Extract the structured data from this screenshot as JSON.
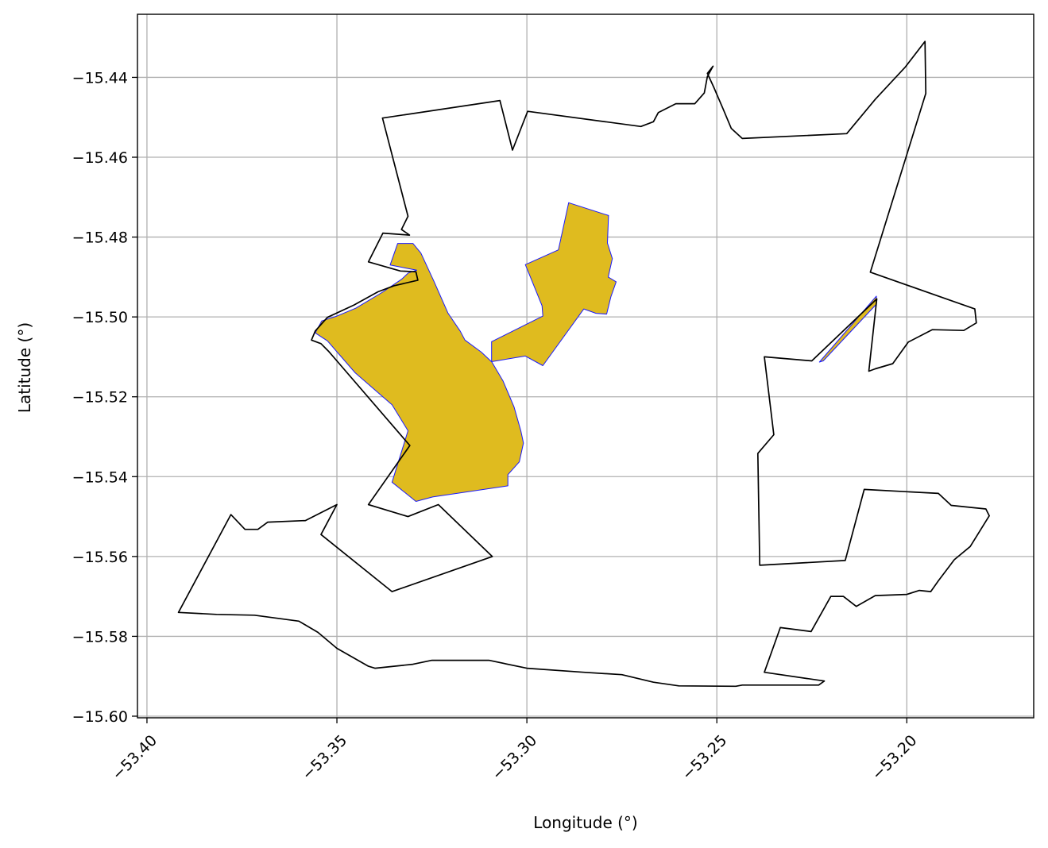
{
  "chart_data": {
    "type": "map",
    "xlabel": "Longitude (°)",
    "ylabel": "Latitude (°)",
    "xlim": [
      -53.4025,
      -53.1666
    ],
    "ylim": [
      -15.6004,
      -15.4242
    ],
    "x_ticks": [
      -53.4,
      -53.35,
      -53.3,
      -53.25,
      -53.2
    ],
    "x_tick_labels": [
      "−53.40",
      "−53.35",
      "−53.30",
      "−53.25",
      "−53.20"
    ],
    "y_ticks": [
      -15.44,
      -15.46,
      -15.48,
      -15.5,
      -15.52,
      -15.54,
      -15.56,
      -15.58,
      -15.6
    ],
    "y_tick_labels": [
      "−15.44",
      "−15.46",
      "−15.48",
      "−15.50",
      "−15.52",
      "−15.54",
      "−15.56",
      "−15.58",
      "−15.60"
    ],
    "grid": true,
    "colors": {
      "boundary": "#000000",
      "region_fill": "#dfbb1f",
      "region_edge": "#1a1aff",
      "grid": "#b0b0b0"
    },
    "boundary": [
      [
        -53.3071,
        -15.4458
      ],
      [
        -53.3038,
        -15.4582
      ],
      [
        -53.2998,
        -15.4485
      ],
      [
        -53.27,
        -15.4523
      ],
      [
        -53.2667,
        -15.4511
      ],
      [
        -53.2654,
        -15.4488
      ],
      [
        -53.2608,
        -15.4466
      ],
      [
        -53.2558,
        -15.4466
      ],
      [
        -53.2533,
        -15.4439
      ],
      [
        -53.2525,
        -15.4398
      ],
      [
        -53.251,
        -15.4372
      ],
      [
        -53.2525,
        -15.439
      ],
      [
        -53.2508,
        -15.4425
      ],
      [
        -53.2483,
        -15.448
      ],
      [
        -53.2462,
        -15.4528
      ],
      [
        -53.2433,
        -15.4553
      ],
      [
        -53.2158,
        -15.4541
      ],
      [
        -53.2083,
        -15.4455
      ],
      [
        -53.2004,
        -15.4374
      ],
      [
        -53.1952,
        -15.431
      ],
      [
        -53.195,
        -15.444
      ],
      [
        -53.2096,
        -15.4888
      ],
      [
        -53.1821,
        -15.498
      ],
      [
        -53.1817,
        -15.5015
      ],
      [
        -53.185,
        -15.5034
      ],
      [
        -53.1933,
        -15.5032
      ],
      [
        -53.1996,
        -15.5063
      ],
      [
        -53.2037,
        -15.5117
      ],
      [
        -53.2083,
        -15.513
      ],
      [
        -53.21,
        -15.5136
      ],
      [
        -53.2079,
        -15.4955
      ],
      [
        -53.225,
        -15.511
      ],
      [
        -53.2375,
        -15.51
      ],
      [
        -53.2367,
        -15.5162
      ],
      [
        -53.235,
        -15.5295
      ],
      [
        -53.2392,
        -15.5342
      ],
      [
        -53.2387,
        -15.5622
      ],
      [
        -53.2162,
        -15.561
      ],
      [
        -53.2112,
        -15.5432
      ],
      [
        -53.1917,
        -15.5442
      ],
      [
        -53.1883,
        -15.5472
      ],
      [
        -53.1792,
        -15.5481
      ],
      [
        -53.1783,
        -15.5498
      ],
      [
        -53.1833,
        -15.5575
      ],
      [
        -53.1875,
        -15.5608
      ],
      [
        -53.1917,
        -15.5661
      ],
      [
        -53.1937,
        -15.5688
      ],
      [
        -53.1967,
        -15.5685
      ],
      [
        -53.2,
        -15.5695
      ],
      [
        -53.2083,
        -15.5698
      ],
      [
        -53.2133,
        -15.5725
      ],
      [
        -53.2167,
        -15.57
      ],
      [
        -53.22,
        -15.57
      ],
      [
        -53.2252,
        -15.5788
      ],
      [
        -53.2333,
        -15.5778
      ],
      [
        -53.2375,
        -15.589
      ],
      [
        -53.2217,
        -15.5912
      ],
      [
        -53.2232,
        -15.5922
      ],
      [
        -53.2433,
        -15.5922
      ],
      [
        -53.245,
        -15.5925
      ],
      [
        -53.26,
        -15.5924
      ],
      [
        -53.2667,
        -15.5915
      ],
      [
        -53.275,
        -15.5896
      ],
      [
        -53.285,
        -15.589
      ],
      [
        -53.3,
        -15.588
      ],
      [
        -53.31,
        -15.586
      ],
      [
        -53.325,
        -15.586
      ],
      [
        -53.33,
        -15.587
      ],
      [
        -53.34,
        -15.588
      ],
      [
        -53.3417,
        -15.5875
      ],
      [
        -53.35,
        -15.583
      ],
      [
        -53.355,
        -15.579
      ],
      [
        -53.36,
        -15.5762
      ],
      [
        -53.3717,
        -15.5747
      ],
      [
        -53.3817,
        -15.5745
      ],
      [
        -53.3917,
        -15.574
      ],
      [
        -53.3779,
        -15.5495
      ],
      [
        -53.3742,
        -15.5532
      ],
      [
        -53.3708,
        -15.5532
      ],
      [
        -53.3682,
        -15.5514
      ],
      [
        -53.3583,
        -15.551
      ],
      [
        -53.35,
        -15.547
      ],
      [
        -53.3542,
        -15.5545
      ],
      [
        -53.3355,
        -15.5688
      ],
      [
        -53.3091,
        -15.56
      ],
      [
        -53.3233,
        -15.547
      ],
      [
        -53.3313,
        -15.55
      ],
      [
        -53.3417,
        -15.547
      ],
      [
        -53.3308,
        -15.5322
      ],
      [
        -53.35,
        -15.511
      ],
      [
        -53.3521,
        -15.5087
      ],
      [
        -53.3542,
        -15.5067
      ],
      [
        -53.3567,
        -15.5058
      ],
      [
        -53.3557,
        -15.5035
      ],
      [
        -53.3525,
        -15.5001
      ],
      [
        -53.3455,
        -15.497
      ],
      [
        -53.3392,
        -15.4937
      ],
      [
        -53.335,
        -15.4922
      ],
      [
        -53.3287,
        -15.4908
      ],
      [
        -53.3292,
        -15.4887
      ],
      [
        -53.3333,
        -15.4885
      ],
      [
        -53.3417,
        -15.4862
      ],
      [
        -53.3379,
        -15.479
      ],
      [
        -53.3309,
        -15.4795
      ],
      [
        -53.333,
        -15.4781
      ],
      [
        -53.3313,
        -15.4748
      ],
      [
        -53.338,
        -15.4502
      ]
    ],
    "region_main": [
      [
        -53.33,
        -15.4816
      ],
      [
        -53.3279,
        -15.484
      ],
      [
        -53.3245,
        -15.491
      ],
      [
        -53.3208,
        -15.499
      ],
      [
        -53.3175,
        -15.5036
      ],
      [
        -53.3163,
        -15.5058
      ],
      [
        -53.312,
        -15.5088
      ],
      [
        -53.3092,
        -15.5113
      ],
      [
        -53.3063,
        -15.516
      ],
      [
        -53.3034,
        -15.5225
      ],
      [
        -53.3016,
        -15.5285
      ],
      [
        -53.3009,
        -15.5316
      ],
      [
        -53.302,
        -15.5363
      ],
      [
        -53.305,
        -15.5395
      ],
      [
        -53.305,
        -15.5423
      ],
      [
        -53.3248,
        -15.5451
      ],
      [
        -53.3292,
        -15.5462
      ],
      [
        -53.3355,
        -15.5414
      ],
      [
        -53.3313,
        -15.5285
      ],
      [
        -53.3355,
        -15.522
      ],
      [
        -53.3452,
        -15.514
      ],
      [
        -53.3525,
        -15.506
      ],
      [
        -53.3557,
        -15.504
      ],
      [
        -53.354,
        -15.501
      ],
      [
        -53.35,
        -15.4998
      ],
      [
        -53.345,
        -15.4978
      ],
      [
        -53.338,
        -15.4938
      ],
      [
        -53.3329,
        -15.4905
      ],
      [
        -53.3312,
        -15.489
      ],
      [
        -53.329,
        -15.4883
      ],
      [
        -53.336,
        -15.487
      ],
      [
        -53.334,
        -15.4816
      ]
    ],
    "region_arm": [
      [
        -53.3004,
        -15.4869
      ],
      [
        -53.2917,
        -15.4832
      ],
      [
        -53.289,
        -15.4714
      ],
      [
        -53.2785,
        -15.4746
      ],
      [
        -53.2788,
        -15.4815
      ],
      [
        -53.2775,
        -15.4854
      ],
      [
        -53.2786,
        -15.49
      ],
      [
        -53.2765,
        -15.4912
      ],
      [
        -53.2779,
        -15.495
      ],
      [
        -53.279,
        -15.4993
      ],
      [
        -53.2818,
        -15.4991
      ],
      [
        -53.285,
        -15.498
      ],
      [
        -53.2958,
        -15.5122
      ],
      [
        -53.3004,
        -15.5098
      ],
      [
        -53.3093,
        -15.5112
      ],
      [
        -53.3093,
        -15.5062
      ],
      [
        -53.2958,
        -15.4998
      ],
      [
        -53.296,
        -15.4972
      ]
    ],
    "region_sliver": [
      [
        -53.223,
        -15.5113
      ],
      [
        -53.208,
        -15.4948
      ],
      [
        -53.208,
        -15.4968
      ],
      [
        -53.222,
        -15.511
      ]
    ]
  }
}
